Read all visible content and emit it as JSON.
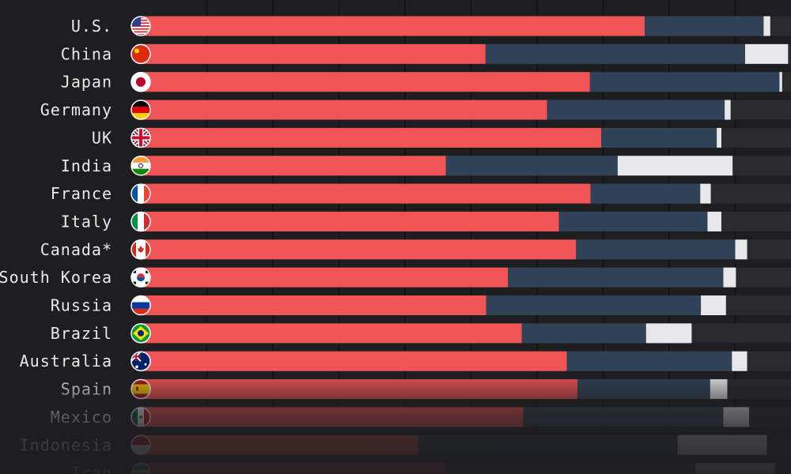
{
  "colors": {
    "background": "#1e1d1f",
    "segment_1": "#f05454",
    "segment_2": "#2f4257",
    "segment_3": "#e8e8ea",
    "track": "#2a292b",
    "gridline": "#141314"
  },
  "chart_data": {
    "type": "bar",
    "orientation": "horizontal",
    "stacked": true,
    "grid": true,
    "categories": [
      "U.S.",
      "China",
      "Japan",
      "Germany",
      "UK",
      "India",
      "France",
      "Italy",
      "Canada*",
      "South Korea",
      "Russia",
      "Brazil",
      "Australia",
      "Spain",
      "Mexico",
      "Indonesia",
      "Iran"
    ],
    "series": [
      {
        "values": [
          76.3,
          52.2,
          68.0,
          61.5,
          69.7,
          46.2,
          68.1,
          63.3,
          65.9,
          55.6,
          52.3,
          57.7,
          64.5,
          66.1,
          57.9,
          42.0,
          46.0
        ]
      },
      {
        "values": [
          18.0,
          39.3,
          28.7,
          26.9,
          17.5,
          26.0,
          16.6,
          22.5,
          24.1,
          32.6,
          32.5,
          18.8,
          25.0,
          20.1,
          30.3,
          39.3,
          38.0
        ]
      },
      {
        "values": [
          1.0,
          6.5,
          0.4,
          0.9,
          0.7,
          17.4,
          1.6,
          2.1,
          1.8,
          1.9,
          3.8,
          6.9,
          2.3,
          2.6,
          3.9,
          13.5,
          12.0
        ]
      }
    ],
    "xlim": [
      0,
      100
    ]
  }
}
